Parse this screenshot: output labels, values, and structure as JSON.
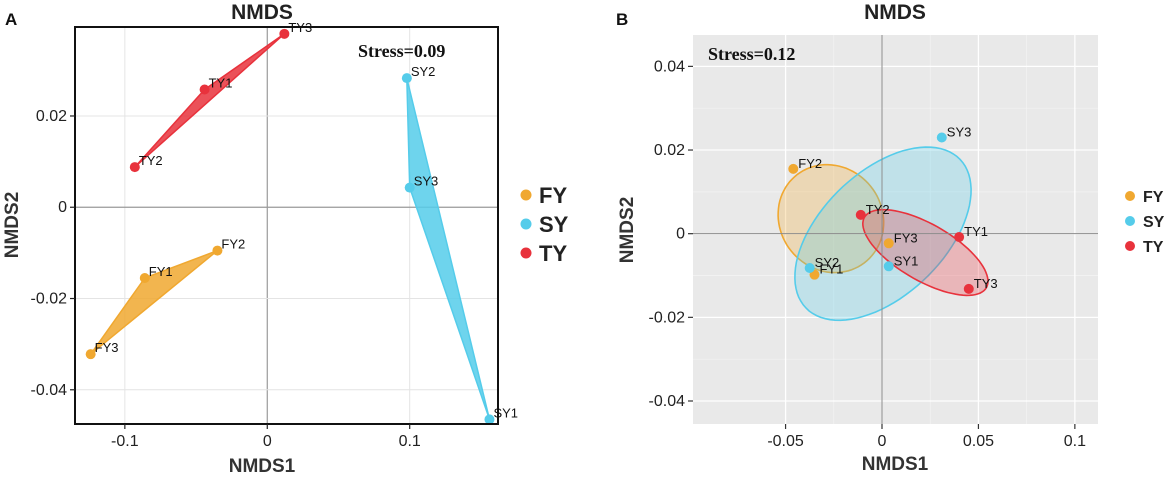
{
  "colors": {
    "FY": "#f0a830",
    "SY": "#55ccea",
    "TY": "#e8323c",
    "zero_line": "#8a8a8a",
    "grid": "#ffffff",
    "panel_bg": "#e9e9e9"
  },
  "chart_data": [
    {
      "type": "scatter",
      "panel_label": "A",
      "title": "NMDS",
      "xlabel": "NMDS1",
      "ylabel": "NMDS2",
      "stress_text": "Stress=0.09",
      "xlim": [
        -0.135,
        0.162
      ],
      "ylim": [
        -0.0475,
        0.0395
      ],
      "xticks": [
        -0.1,
        0,
        0.1
      ],
      "xtick_labels": [
        "-0.1",
        "0",
        "0.1"
      ],
      "yticks": [
        -0.04,
        -0.02,
        0,
        0.02
      ],
      "ytick_labels": [
        "-0.04",
        "-0.02",
        "0",
        "0.02"
      ],
      "hull_opacity": 0.85,
      "legend": [
        "FY",
        "SY",
        "TY"
      ],
      "series": [
        {
          "name": "FY",
          "points": [
            {
              "label": "FY1",
              "x": -0.086,
              "y": -0.0155
            },
            {
              "label": "FY2",
              "x": -0.035,
              "y": -0.0095
            },
            {
              "label": "FY3",
              "x": -0.124,
              "y": -0.0322
            }
          ]
        },
        {
          "name": "SY",
          "points": [
            {
              "label": "SY1",
              "x": 0.156,
              "y": -0.0465
            },
            {
              "label": "SY2",
              "x": 0.098,
              "y": 0.0283
            },
            {
              "label": "SY3",
              "x": 0.1,
              "y": 0.0043
            }
          ]
        },
        {
          "name": "TY",
          "points": [
            {
              "label": "TY1",
              "x": -0.044,
              "y": 0.0258
            },
            {
              "label": "TY2",
              "x": -0.093,
              "y": 0.0088
            },
            {
              "label": "TY3",
              "x": 0.012,
              "y": 0.038
            }
          ]
        }
      ]
    },
    {
      "type": "scatter",
      "panel_label": "B",
      "title": "NMDS",
      "xlabel": "NMDS1",
      "ylabel": "NMDS2",
      "stress_text": "Stress=0.12",
      "xlim": [
        -0.098,
        0.112
      ],
      "ylim": [
        -0.0455,
        0.0475
      ],
      "xticks": [
        -0.05,
        0,
        0.05,
        0.1
      ],
      "xtick_labels": [
        "-0.05",
        "0",
        "0.05",
        "0.1"
      ],
      "yticks": [
        -0.04,
        -0.02,
        0,
        0.02,
        0.04
      ],
      "ytick_labels": [
        "-0.04",
        "-0.02",
        "0",
        "0.02",
        "0.04"
      ],
      "ellipse_opacity": 0.28,
      "legend": [
        "FY",
        "SY",
        "TY"
      ],
      "ellipses": [
        {
          "group": "FY",
          "cx": -0.0265,
          "cy": 0.0036,
          "rx": 0.0575,
          "ry": 0.0245,
          "angle_deg": -53
        },
        {
          "group": "SY",
          "cx": 0.0005,
          "cy": 0.0,
          "rx": 0.111,
          "ry": 0.0295,
          "angle_deg": 44
        },
        {
          "group": "TY",
          "cx": 0.0225,
          "cy": -0.0045,
          "rx": 0.073,
          "ry": 0.0135,
          "angle_deg": -30
        }
      ],
      "series": [
        {
          "name": "FY",
          "points": [
            {
              "label": "FY1",
              "x": -0.035,
              "y": -0.0098
            },
            {
              "label": "FY2",
              "x": -0.046,
              "y": 0.0155
            },
            {
              "label": "FY3",
              "x": 0.0035,
              "y": -0.0023
            }
          ]
        },
        {
          "name": "SY",
          "points": [
            {
              "label": "SY1",
              "x": 0.0035,
              "y": -0.0078
            },
            {
              "label": "SY2",
              "x": -0.0375,
              "y": -0.0082
            },
            {
              "label": "SY3",
              "x": 0.031,
              "y": 0.023
            }
          ]
        },
        {
          "name": "TY",
          "points": [
            {
              "label": "TY1",
              "x": 0.04,
              "y": -0.0008
            },
            {
              "label": "TY2",
              "x": -0.011,
              "y": 0.0045
            },
            {
              "label": "TY3",
              "x": 0.045,
              "y": -0.0132
            }
          ]
        }
      ]
    }
  ]
}
